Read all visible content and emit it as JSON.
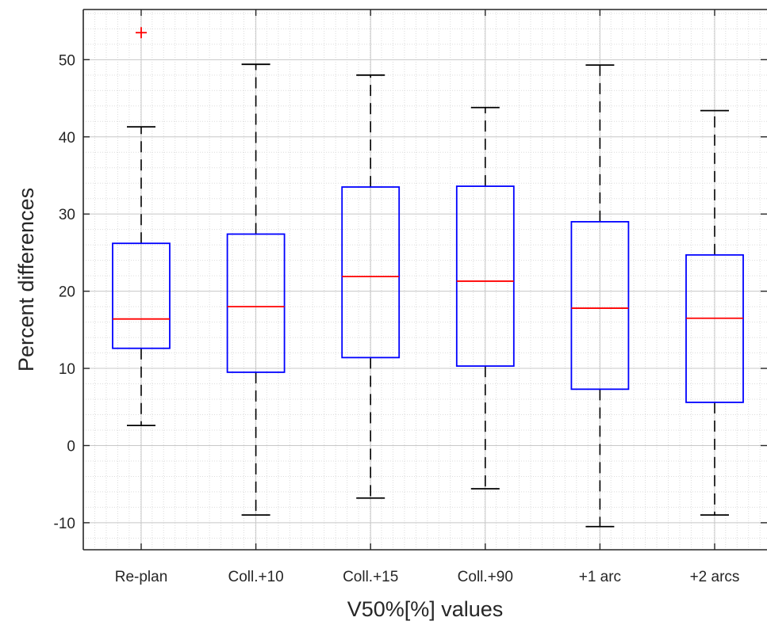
{
  "chart_data": {
    "type": "boxplot",
    "xlabel": "V50%[%] values",
    "ylabel": "Percent differences",
    "ylim": [
      -13.5,
      56.5
    ],
    "yticks": [
      -10,
      0,
      10,
      20,
      30,
      40,
      50
    ],
    "grid": "major and minor",
    "categories": [
      "Re-plan",
      "Coll.+10",
      "Coll.+15",
      "Coll.+90",
      "+1 arc",
      "+2 arcs"
    ],
    "boxes": [
      {
        "whisker_low": 2.6,
        "q1": 12.6,
        "median": 16.4,
        "q3": 26.2,
        "whisker_high": 41.3,
        "outliers": [
          53.5
        ]
      },
      {
        "whisker_low": -9.0,
        "q1": 9.5,
        "median": 18.0,
        "q3": 27.4,
        "whisker_high": 49.4,
        "outliers": []
      },
      {
        "whisker_low": -6.8,
        "q1": 11.4,
        "median": 21.9,
        "q3": 33.5,
        "whisker_high": 48.0,
        "outliers": []
      },
      {
        "whisker_low": -5.6,
        "q1": 10.3,
        "median": 21.3,
        "q3": 33.6,
        "whisker_high": 43.8,
        "outliers": []
      },
      {
        "whisker_low": -10.5,
        "q1": 7.3,
        "median": 17.8,
        "q3": 29.0,
        "whisker_high": 49.3,
        "outliers": []
      },
      {
        "whisker_low": -9.0,
        "q1": 5.6,
        "median": 16.5,
        "q3": 24.7,
        "whisker_high": 43.4,
        "outliers": []
      }
    ],
    "colors": {
      "box": "#0000ff",
      "median": "#ff0000",
      "whisker": "#000000",
      "outlier": "#ff0000",
      "grid": "#dcdcdc",
      "axes": "#262626"
    }
  }
}
